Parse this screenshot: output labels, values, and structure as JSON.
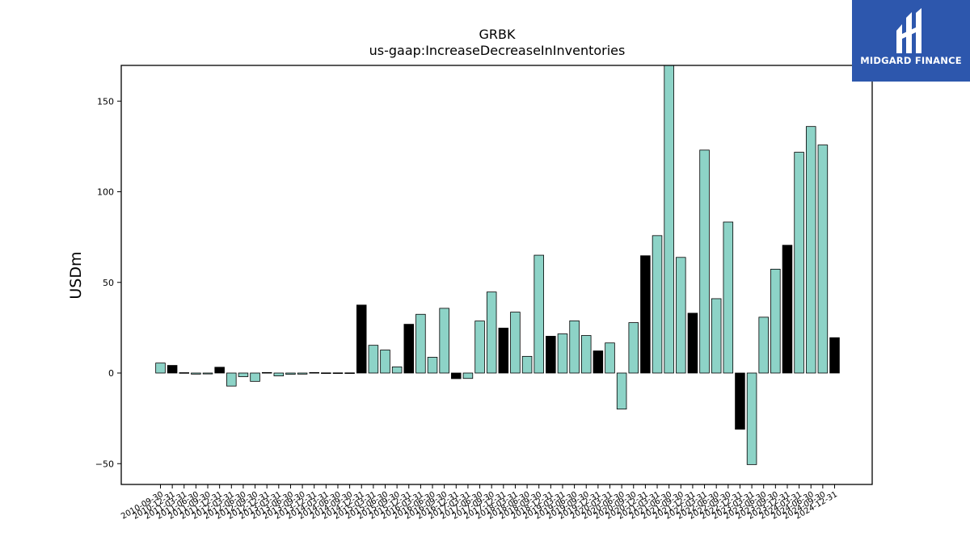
{
  "logo": {
    "text": "MIDGARD FINANCE",
    "icon": "midgard-logo-icon",
    "background": "#2d57ad"
  },
  "chart_data": {
    "type": "bar",
    "title": "GRBK",
    "subtitle": "us-gaap:IncreaseDecreaseInInventories",
    "xlabel": "",
    "ylabel": "USDm",
    "ylim": [
      -62,
      170
    ],
    "yticks": [
      -50,
      0,
      50,
      100,
      150
    ],
    "grid": false,
    "colors": {
      "quarter": "#8dd3c7",
      "annual": "#000000"
    },
    "categories": [
      "2010-09-30",
      "2010-12-31",
      "2011-03-31",
      "2011-06-30",
      "2011-09-30",
      "2011-12-31",
      "2012-03-31",
      "2012-06-30",
      "2012-09-30",
      "2012-12-31",
      "2013-03-31",
      "2013-06-30",
      "2013-09-30",
      "2013-12-31",
      "2014-03-31",
      "2014-06-30",
      "2014-09-30",
      "2014-12-31",
      "2015-03-31",
      "2015-06-30",
      "2015-09-30",
      "2015-12-31",
      "2016-03-31",
      "2016-06-30",
      "2016-09-30",
      "2016-12-31",
      "2017-03-31",
      "2017-06-30",
      "2017-09-30",
      "2017-12-31",
      "2018-03-31",
      "2018-06-30",
      "2018-09-30",
      "2018-12-31",
      "2019-03-31",
      "2019-06-30",
      "2019-09-30",
      "2019-12-31",
      "2020-03-31",
      "2020-06-30",
      "2020-09-30",
      "2020-12-31",
      "2021-03-31",
      "2021-06-30",
      "2021-09-30",
      "2021-12-31",
      "2022-03-31",
      "2022-06-30",
      "2022-09-30",
      "2022-12-31",
      "2023-03-31",
      "2023-06-30",
      "2023-09-30",
      "2023-12-31",
      "2024-03-31",
      "2024-06-30",
      "2024-09-30",
      "2024-12-31"
    ],
    "values": [
      5.5,
      4.2,
      0.2,
      -0.6,
      -0.5,
      3.2,
      -7.2,
      -2.0,
      -4.6,
      0.3,
      -1.6,
      -0.7,
      -0.6,
      0.3,
      0.1,
      0.1,
      0.1,
      37.5,
      15.3,
      12.7,
      3.4,
      26.9,
      32.4,
      8.7,
      35.7,
      -3.1,
      -3.0,
      28.7,
      44.7,
      24.8,
      33.6,
      9.2,
      65.0,
      20.3,
      21.6,
      28.8,
      20.7,
      12.2,
      16.6,
      -19.9,
      27.8,
      64.7,
      75.8,
      170.0,
      63.8,
      33.0,
      123.0,
      41.0,
      83.3,
      -31.0,
      -50.5,
      30.8,
      57.3,
      70.5,
      121.8,
      136.0,
      125.8,
      19.5
    ],
    "annual": [
      false,
      true,
      false,
      false,
      false,
      true,
      false,
      false,
      false,
      true,
      false,
      false,
      false,
      true,
      false,
      false,
      false,
      true,
      false,
      false,
      false,
      true,
      false,
      false,
      false,
      true,
      false,
      false,
      false,
      true,
      false,
      false,
      false,
      true,
      false,
      false,
      false,
      true,
      false,
      false,
      false,
      true,
      false,
      false,
      false,
      true,
      false,
      false,
      false,
      true,
      false,
      false,
      false,
      true,
      false,
      false,
      false,
      true
    ]
  }
}
